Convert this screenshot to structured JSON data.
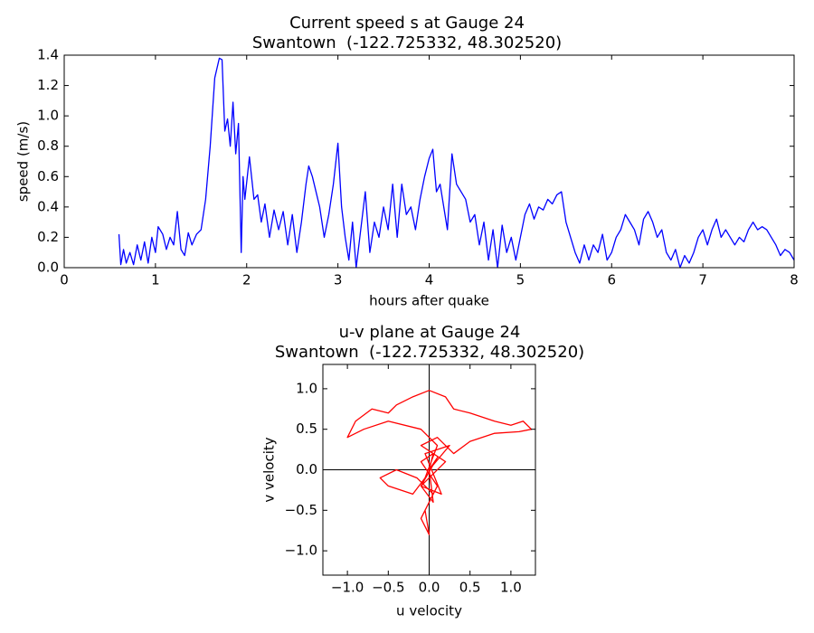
{
  "chart_data": [
    {
      "type": "line",
      "title": "Current speed s at Gauge 24",
      "subtitle": "Swantown  (-122.725332, 48.302520)",
      "xlabel": "hours after quake",
      "ylabel": "speed (m/s)",
      "xlim": [
        0,
        8
      ],
      "ylim": [
        0,
        1.4
      ],
      "xticks": [
        0,
        1,
        2,
        3,
        4,
        5,
        6,
        7,
        8
      ],
      "yticks": [
        {
          "value": 0,
          "label": "0.0"
        },
        0.2,
        0.4,
        0.6,
        0.8,
        {
          "value": 1,
          "label": "1.0"
        },
        1.2,
        1.4
      ],
      "grid": false,
      "zero_lines": false,
      "x": [
        0.6,
        0.62,
        0.65,
        0.68,
        0.72,
        0.76,
        0.8,
        0.84,
        0.88,
        0.92,
        0.96,
        1.0,
        1.03,
        1.08,
        1.12,
        1.16,
        1.2,
        1.24,
        1.28,
        1.32,
        1.36,
        1.4,
        1.45,
        1.5,
        1.55,
        1.6,
        1.65,
        1.7,
        1.73,
        1.76,
        1.79,
        1.82,
        1.85,
        1.88,
        1.91,
        1.94,
        1.96,
        1.98,
        2.03,
        2.08,
        2.12,
        2.16,
        2.2,
        2.25,
        2.3,
        2.35,
        2.4,
        2.45,
        2.5,
        2.55,
        2.6,
        2.65,
        2.68,
        2.72,
        2.76,
        2.8,
        2.85,
        2.9,
        2.95,
        3.0,
        3.04,
        3.08,
        3.12,
        3.16,
        3.2,
        3.25,
        3.3,
        3.35,
        3.4,
        3.45,
        3.5,
        3.55,
        3.6,
        3.65,
        3.7,
        3.75,
        3.8,
        3.85,
        3.9,
        3.95,
        4.0,
        4.04,
        4.08,
        4.12,
        4.16,
        4.2,
        4.25,
        4.3,
        4.35,
        4.4,
        4.45,
        4.5,
        4.55,
        4.6,
        4.65,
        4.7,
        4.75,
        4.8,
        4.85,
        4.9,
        4.95,
        5.0,
        5.05,
        5.1,
        5.15,
        5.2,
        5.25,
        5.3,
        5.35,
        5.4,
        5.45,
        5.5,
        5.55,
        5.6,
        5.65,
        5.7,
        5.75,
        5.8,
        5.85,
        5.9,
        5.95,
        6.0,
        6.05,
        6.1,
        6.15,
        6.2,
        6.25,
        6.3,
        6.35,
        6.4,
        6.45,
        6.5,
        6.55,
        6.6,
        6.65,
        6.7,
        6.75,
        6.8,
        6.85,
        6.9,
        6.95,
        7.0,
        7.05,
        7.1,
        7.15,
        7.2,
        7.25,
        7.3,
        7.35,
        7.4,
        7.45,
        7.5,
        7.55,
        7.6,
        7.65,
        7.7,
        7.75,
        7.8,
        7.85,
        7.9,
        7.95,
        8.0
      ],
      "series": [
        {
          "name": "speed",
          "color": "#0000ff",
          "values": [
            0.22,
            0.02,
            0.12,
            0.03,
            0.1,
            0.02,
            0.15,
            0.05,
            0.17,
            0.03,
            0.2,
            0.1,
            0.27,
            0.22,
            0.12,
            0.2,
            0.15,
            0.37,
            0.12,
            0.08,
            0.23,
            0.15,
            0.22,
            0.25,
            0.45,
            0.8,
            1.25,
            1.38,
            1.37,
            0.9,
            0.98,
            0.8,
            1.09,
            0.75,
            0.95,
            0.1,
            0.6,
            0.45,
            0.73,
            0.45,
            0.48,
            0.3,
            0.42,
            0.2,
            0.38,
            0.25,
            0.37,
            0.15,
            0.35,
            0.1,
            0.3,
            0.55,
            0.67,
            0.6,
            0.5,
            0.4,
            0.2,
            0.35,
            0.55,
            0.82,
            0.4,
            0.2,
            0.05,
            0.3,
            0.0,
            0.25,
            0.5,
            0.1,
            0.3,
            0.2,
            0.4,
            0.25,
            0.55,
            0.2,
            0.55,
            0.35,
            0.4,
            0.25,
            0.45,
            0.6,
            0.72,
            0.78,
            0.5,
            0.55,
            0.4,
            0.25,
            0.75,
            0.55,
            0.5,
            0.45,
            0.3,
            0.35,
            0.15,
            0.3,
            0.05,
            0.25,
            0.0,
            0.28,
            0.1,
            0.2,
            0.05,
            0.2,
            0.35,
            0.42,
            0.32,
            0.4,
            0.38,
            0.45,
            0.42,
            0.48,
            0.5,
            0.3,
            0.2,
            0.1,
            0.03,
            0.15,
            0.05,
            0.15,
            0.1,
            0.22,
            0.05,
            0.1,
            0.2,
            0.25,
            0.35,
            0.3,
            0.25,
            0.15,
            0.32,
            0.37,
            0.3,
            0.2,
            0.25,
            0.1,
            0.05,
            0.12,
            0.0,
            0.08,
            0.03,
            0.1,
            0.2,
            0.25,
            0.15,
            0.25,
            0.32,
            0.2,
            0.25,
            0.2,
            0.15,
            0.2,
            0.17,
            0.25,
            0.3,
            0.25,
            0.27,
            0.25,
            0.2,
            0.15,
            0.08,
            0.12,
            0.1,
            0.05
          ]
        }
      ]
    },
    {
      "type": "line",
      "title": "u-v plane at Gauge 24",
      "subtitle": "Swantown  (-122.725332, 48.302520)",
      "xlabel": "u velocity",
      "ylabel": "v velocity",
      "xlim": [
        -1.3,
        1.3
      ],
      "ylim": [
        -1.3,
        1.3
      ],
      "xticks": [
        {
          "value": -1,
          "label": "−1.0"
        },
        {
          "value": -0.5,
          "label": "−0.5"
        },
        {
          "value": 0,
          "label": "0.0"
        },
        0.5,
        {
          "value": 1,
          "label": "1.0"
        }
      ],
      "yticks": [
        {
          "value": -1,
          "label": "−1.0"
        },
        {
          "value": -0.5,
          "label": "−0.5"
        },
        {
          "value": 0,
          "label": "0.0"
        },
        0.5,
        {
          "value": 1,
          "label": "1.0"
        }
      ],
      "grid": false,
      "zero_lines": true,
      "x": [
        0,
        0.05,
        -0.1,
        0.1,
        -0.05,
        0,
        -0.1,
        0.05,
        -0.15,
        -0.4,
        -0.6,
        -0.5,
        -0.2,
        -0.05,
        0.1,
        -0.1,
        -0.5,
        -0.8,
        -1.0,
        -0.9,
        -0.7,
        -0.5,
        -0.4,
        -0.2,
        0,
        0.2,
        0.3,
        0.5,
        0.8,
        1.0,
        1.15,
        1.25,
        1.1,
        0.8,
        0.5,
        0.3,
        0.1,
        -0.1,
        0.2,
        -0.1,
        0.15,
        -0.05,
        0.25,
        0,
        0.05,
        -0.1,
        0.1,
        0
      ],
      "series": [
        {
          "name": "u-v",
          "color": "#ff0000",
          "values": [
            0,
            0.2,
            0.1,
            -0.2,
            -0.5,
            -0.8,
            -0.6,
            -0.3,
            -0.1,
            0,
            -0.1,
            -0.2,
            -0.3,
            -0.1,
            0.3,
            0.5,
            0.6,
            0.5,
            0.4,
            0.6,
            0.75,
            0.7,
            0.8,
            0.9,
            0.98,
            0.9,
            0.75,
            0.7,
            0.6,
            0.55,
            0.6,
            0.5,
            0.47,
            0.45,
            0.35,
            0.2,
            0.4,
            0.3,
            0.1,
            -0.2,
            -0.3,
            0.2,
            0.3,
            0,
            -0.4,
            -0.2,
            0.15,
            0
          ]
        }
      ]
    }
  ]
}
